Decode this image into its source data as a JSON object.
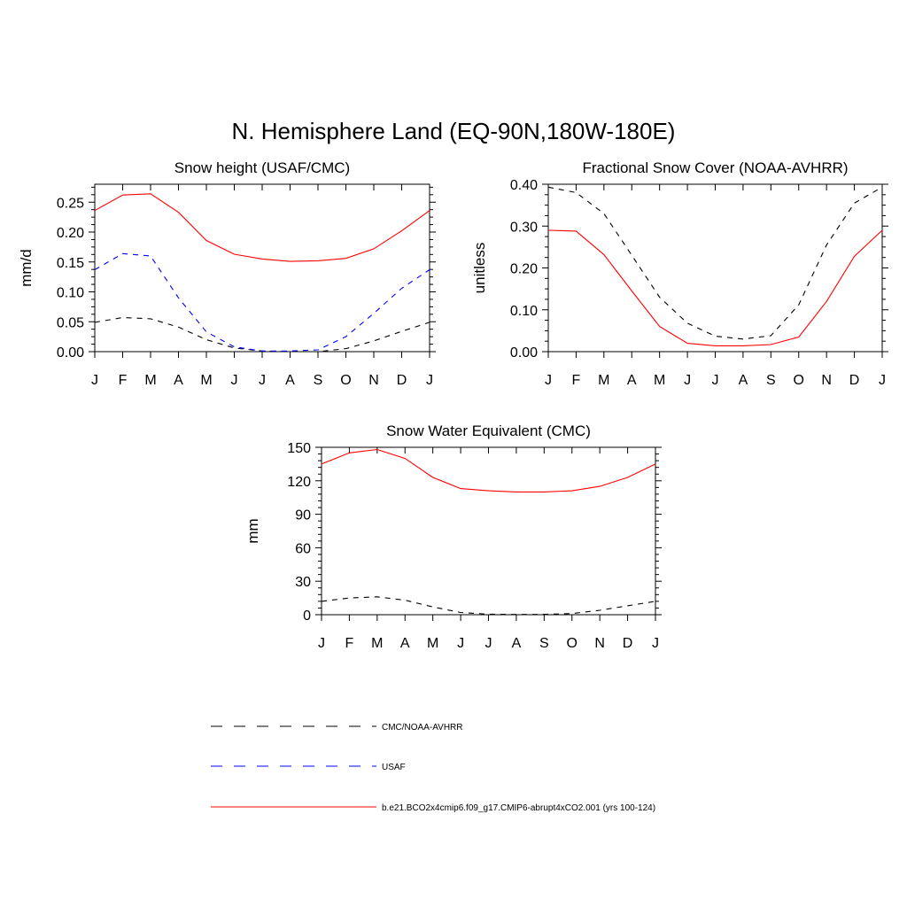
{
  "figure": {
    "title": "N. Hemisphere Land (EQ-90N,180W-180E)"
  },
  "colors": {
    "obs": "#000000",
    "usaf": "#0000ff",
    "model": "#ff0000"
  },
  "legend": [
    {
      "label": "CMC/NOAA-AVHRR",
      "color": "#000000",
      "style": "dashed"
    },
    {
      "label": "USAF",
      "color": "#0000ff",
      "style": "dashed"
    },
    {
      "label": "b.e21.BCO2x4cmip6.f09_g17.CMIP6-abrupt4xCO2.001 (yrs 100-124)",
      "color": "#ff0000",
      "style": "solid"
    }
  ],
  "chart_data": [
    {
      "type": "line",
      "title": "Snow height (USAF/CMC)",
      "xlabel": "",
      "ylabel": "mm/d",
      "categories": [
        "J",
        "F",
        "M",
        "A",
        "M",
        "J",
        "J",
        "A",
        "S",
        "O",
        "N",
        "D",
        "J"
      ],
      "ylim": [
        0,
        0.28
      ],
      "yticks": [
        0,
        0.05,
        0.1,
        0.15,
        0.2,
        0.25
      ],
      "ytick_labels": [
        "0.00",
        "0.05",
        "0.10",
        "0.15",
        "0.20",
        "0.25"
      ],
      "series": [
        {
          "name": "CMC/NOAA-AVHRR",
          "color": "#000000",
          "style": "dashed",
          "values": [
            0.049,
            0.057,
            0.055,
            0.041,
            0.02,
            0.006,
            0.001,
            0.0,
            0.0,
            0.005,
            0.018,
            0.034,
            0.049
          ]
        },
        {
          "name": "USAF",
          "color": "#0000ff",
          "style": "dashed",
          "values": [
            0.137,
            0.164,
            0.16,
            0.09,
            0.033,
            0.008,
            0.001,
            0.001,
            0.003,
            0.025,
            0.064,
            0.106,
            0.137
          ]
        },
        {
          "name": "b.e21.BCO2x4cmip6.f09_g17.CMIP6-abrupt4xCO2.001 (yrs 100-124)",
          "color": "#ff0000",
          "style": "solid",
          "values": [
            0.236,
            0.262,
            0.264,
            0.233,
            0.186,
            0.163,
            0.155,
            0.151,
            0.152,
            0.156,
            0.172,
            0.202,
            0.236
          ]
        }
      ]
    },
    {
      "type": "line",
      "title": "Fractional Snow Cover (NOAA-AVHRR)",
      "xlabel": "",
      "ylabel": "unitless",
      "categories": [
        "J",
        "F",
        "M",
        "A",
        "M",
        "J",
        "J",
        "A",
        "S",
        "O",
        "N",
        "D",
        "J"
      ],
      "ylim": [
        0,
        0.4
      ],
      "yticks": [
        0,
        0.1,
        0.2,
        0.3,
        0.4
      ],
      "ytick_labels": [
        "0.00",
        "0.10",
        "0.20",
        "0.30",
        "0.40"
      ],
      "series": [
        {
          "name": "CMC/NOAA-AVHRR",
          "color": "#000000",
          "style": "dashed",
          "values": [
            0.393,
            0.38,
            0.33,
            0.23,
            0.13,
            0.068,
            0.037,
            0.03,
            0.038,
            0.112,
            0.255,
            0.355,
            0.393
          ]
        },
        {
          "name": "b.e21.BCO2x4cmip6.f09_g17.CMIP6-abrupt4xCO2.001 (yrs 100-124)",
          "color": "#ff0000",
          "style": "solid",
          "values": [
            0.29,
            0.288,
            0.232,
            0.145,
            0.06,
            0.02,
            0.014,
            0.014,
            0.017,
            0.035,
            0.12,
            0.228,
            0.29
          ]
        }
      ]
    },
    {
      "type": "line",
      "title": "Snow Water Equivalent (CMC)",
      "xlabel": "",
      "ylabel": "mm",
      "categories": [
        "J",
        "F",
        "M",
        "A",
        "M",
        "J",
        "J",
        "A",
        "S",
        "O",
        "N",
        "D",
        "J"
      ],
      "ylim": [
        0,
        150
      ],
      "yticks": [
        0,
        30,
        60,
        90,
        120,
        150
      ],
      "ytick_labels": [
        "0",
        "30",
        "60",
        "90",
        "120",
        "150"
      ],
      "series": [
        {
          "name": "CMC/NOAA-AVHRR",
          "color": "#000000",
          "style": "dashed",
          "values": [
            12,
            15,
            16,
            13,
            7,
            2,
            0.5,
            0.2,
            0.3,
            1,
            4,
            8,
            12
          ]
        },
        {
          "name": "b.e21.BCO2x4cmip6.f09_g17.CMIP6-abrupt4xCO2.001 (yrs 100-124)",
          "color": "#ff0000",
          "style": "solid",
          "values": [
            135,
            145,
            148,
            140,
            123,
            113,
            111,
            110,
            110,
            111,
            115,
            123,
            135
          ]
        }
      ]
    }
  ]
}
